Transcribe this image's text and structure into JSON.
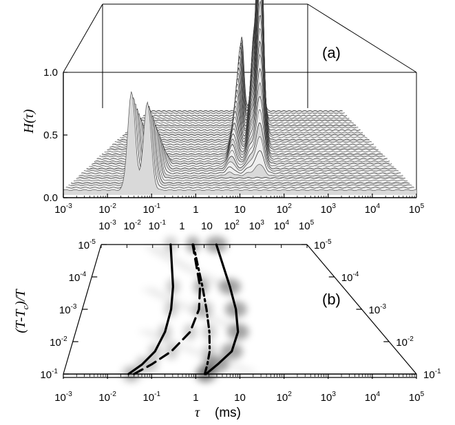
{
  "chart_data": [
    {
      "panel": "(a)",
      "type": "area",
      "x_scale": "log",
      "xlim": [
        0.001,
        100000
      ],
      "x_ticks": [
        "10^-3",
        "10^-2",
        "10^-1",
        "1",
        "10",
        "10^2",
        "10^3",
        "10^4",
        "10^5"
      ],
      "ylabel": "H(τ)",
      "ylim": [
        0,
        1.0
      ],
      "y_ticks": [
        "0.0",
        "0.5",
        "1.0"
      ],
      "depth_ticks": [
        "10^-3",
        "10^-2",
        "10^-1",
        "1",
        "10",
        "10^2",
        "10^3",
        "10^4",
        "10^5"
      ],
      "peaks": [
        {
          "x": 0.035,
          "height": 0.8
        },
        {
          "x": 0.08,
          "height": 0.72
        },
        {
          "x": 5,
          "height": 0.6
        },
        {
          "x": 15,
          "height": 0.55
        },
        {
          "x": 25,
          "height": 1.25
        },
        {
          "x": 30,
          "height": 1.1
        }
      ]
    },
    {
      "panel": "(b)",
      "type": "heatmap",
      "x_scale": "log",
      "xlim": [
        0.001,
        100000
      ],
      "x_ticks": [
        "10^-3",
        "10^-2",
        "10^-1",
        "1",
        "10",
        "10^2",
        "10^3",
        "10^4",
        "10^5"
      ],
      "xlabel": "τ",
      "xunit": "(ms)",
      "ylabel": "(T-Tc)/T",
      "y_scale": "log",
      "ylim": [
        0.1,
        1e-05
      ],
      "y_ticks": [
        "10^-1",
        "10^-2",
        "10^-3",
        "10^-4",
        "10^-5"
      ],
      "series": [
        {
          "style": "solid",
          "x": [
            0.03,
            0.06,
            0.12,
            0.22,
            0.35,
            0.45,
            0.5
          ],
          "y": [
            0.1,
            0.05,
            0.02,
            0.005,
            0.001,
            0.0002,
            1e-05
          ]
        },
        {
          "style": "dashed",
          "x": [
            0.04,
            0.1,
            0.3,
            1.0,
            2.2,
            3.2,
            3.6
          ],
          "y": [
            0.1,
            0.05,
            0.02,
            0.005,
            0.001,
            0.0002,
            1e-05
          ]
        },
        {
          "style": "dash-dot",
          "x": [
            1.6,
            2.0,
            2.6,
            3.2,
            3.6,
            3.8,
            3.8
          ],
          "y": [
            0.1,
            0.05,
            0.02,
            0.005,
            0.001,
            0.0002,
            1e-05
          ]
        },
        {
          "style": "solid",
          "x": [
            1.7,
            3.5,
            9,
            18,
            25,
            28,
            30
          ],
          "y": [
            0.1,
            0.05,
            0.02,
            0.005,
            0.001,
            0.0002,
            1e-05
          ]
        }
      ]
    }
  ],
  "labels": {
    "panel_a": "(a)",
    "panel_b": "(b)",
    "h_axis": "H(τ)",
    "tau_axis": "τ",
    "tau_unit": "(ms)",
    "y0": "0.0",
    "y05": "0.5",
    "y10": "1.0"
  }
}
